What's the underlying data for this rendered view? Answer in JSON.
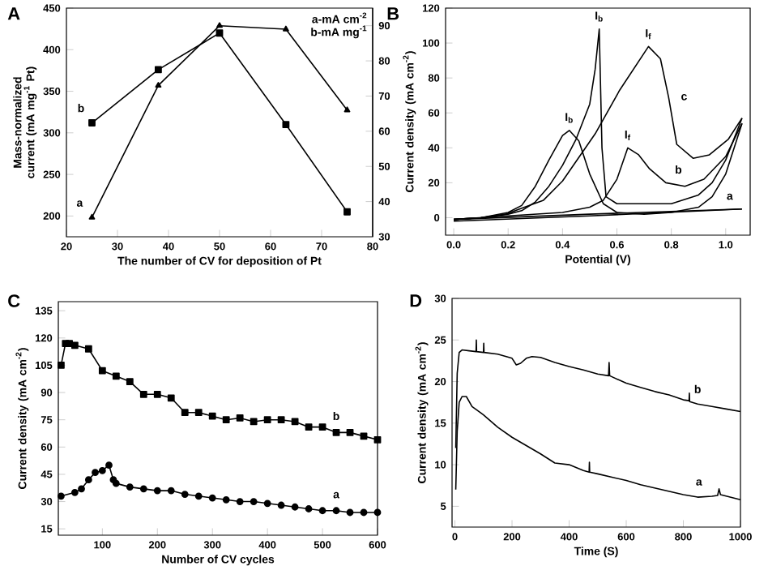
{
  "chart_data": [
    {
      "type": "line",
      "title": "A",
      "xlabel": "The number of CV for deposition of Pt",
      "ylabel": "Mass-normalized current (mA mg$^{-1}$ Pt)",
      "xlim": [
        20,
        80
      ],
      "xticks": [
        20,
        30,
        40,
        50,
        60,
        70,
        80
      ],
      "ylim": [
        175,
        450
      ],
      "yticks": [
        200,
        250,
        300,
        350,
        400,
        450
      ],
      "y2lim": [
        30,
        95
      ],
      "y2ticks": [
        30,
        40,
        50,
        60,
        70,
        80,
        90
      ],
      "annotations": [
        "a-mA cm$^{-2}$",
        "b-mA mg$^{-1}$"
      ],
      "series": [
        {
          "name": "b",
          "color": "#000000",
          "marker": "square",
          "x": [
            25,
            38,
            50,
            63,
            75
          ],
          "values": [
            312,
            376,
            420,
            310,
            205
          ]
        },
        {
          "name": "a",
          "color": "#000000",
          "marker": "triangle",
          "axis": "y2",
          "x": [
            25,
            38,
            50,
            63,
            75
          ],
          "values": [
            35.5,
            73,
            90,
            89,
            66
          ]
        }
      ]
    },
    {
      "type": "line",
      "title": "B",
      "xlabel": "Potential (V)",
      "ylabel": "Current density (mA cm$^{-2}$)",
      "xlim": [
        -0.03,
        1.09
      ],
      "xticks": [
        {
          "value": 0,
          "label": "0.0"
        },
        0.2,
        0.4,
        0.6,
        0.8,
        {
          "value": 1,
          "label": "1.0"
        }
      ],
      "ylim": [
        -10,
        120
      ],
      "yticks": [
        0,
        20,
        40,
        60,
        80,
        100,
        120
      ],
      "annotations": [
        {
          "text": "I$_{b}$",
          "x": 0.425,
          "y": 50
        },
        {
          "text": "I$_{b}$",
          "x": 0.535,
          "y": 108
        },
        {
          "text": "I$_{f}$",
          "x": 0.716,
          "y": 98
        },
        {
          "text": "I$_{f}$",
          "x": 0.64,
          "y": 40
        }
      ],
      "series": [
        {
          "name": "a",
          "color": "#000000",
          "x": [
            0,
            0.5,
            1.06
          ],
          "values": [
            -1,
            2,
            5
          ]
        },
        {
          "color": "#000000",
          "x": [
            0,
            0.5,
            1.06
          ],
          "values": [
            -2,
            1,
            5
          ]
        },
        {
          "name": "b",
          "color": "#000000",
          "x": [
            0,
            0.2,
            0.4,
            0.5,
            0.55,
            0.6,
            0.64,
            0.68,
            0.72,
            0.78,
            0.85,
            0.92,
            1.0,
            1.06
          ],
          "values": [
            -1,
            1,
            3,
            6,
            10,
            22,
            40,
            36,
            28,
            20,
            18,
            22,
            35,
            54
          ]
        },
        {
          "color": "#000000",
          "x": [
            0,
            0.1,
            0.2,
            0.25,
            0.3,
            0.35,
            0.4,
            0.425,
            0.46,
            0.5,
            0.55,
            0.6,
            0.7,
            0.8,
            0.9,
            0.95,
            1.0,
            1.06
          ],
          "values": [
            -1,
            0,
            3,
            7,
            18,
            33,
            47,
            50,
            44,
            25,
            8,
            3,
            2,
            3,
            6,
            12,
            25,
            54
          ]
        },
        {
          "name": "c",
          "color": "#000000",
          "x": [
            0,
            0.1,
            0.19,
            0.33,
            0.4,
            0.52,
            0.61,
            0.716,
            0.76,
            0.79,
            0.82,
            0.88,
            0.94,
            1.01,
            1.06
          ],
          "values": [
            -1,
            0,
            2,
            10,
            21,
            48,
            73,
            98,
            91,
            69,
            42,
            34,
            36,
            45,
            57
          ]
        },
        {
          "color": "#000000",
          "x": [
            0,
            0.1,
            0.2,
            0.25,
            0.3,
            0.35,
            0.4,
            0.45,
            0.5,
            0.52,
            0.535,
            0.545,
            0.56,
            0.6,
            0.7,
            0.8,
            0.9,
            0.95,
            1.0,
            1.06
          ],
          "values": [
            -1,
            0,
            2,
            4,
            9,
            18,
            30,
            45,
            65,
            85,
            108,
            40,
            12,
            8,
            8,
            8,
            13,
            20,
            33,
            57
          ]
        }
      ]
    },
    {
      "type": "line",
      "title": "C",
      "xlabel": "Number of CV cycles",
      "ylabel": "Current density (mA cm$^{-2}$)",
      "xlim": [
        20,
        600
      ],
      "xticks": [
        100,
        200,
        300,
        400,
        500,
        600
      ],
      "ylim": [
        11.5,
        140
      ],
      "yticks": [
        15,
        30,
        45,
        60,
        75,
        90,
        105,
        120,
        135
      ],
      "series": [
        {
          "name": "a",
          "color": "#000000",
          "marker": "circle",
          "x": [
            25,
            50,
            62,
            75,
            87,
            100,
            112,
            120,
            125,
            150,
            175,
            200,
            225,
            250,
            275,
            300,
            325,
            350,
            375,
            400,
            425,
            450,
            475,
            500,
            525,
            550,
            575,
            600
          ],
          "values": [
            33,
            35,
            37,
            42,
            46,
            47,
            50,
            42,
            40,
            38,
            37,
            36,
            36,
            34,
            33,
            32,
            31,
            30,
            30,
            29,
            28,
            27,
            26,
            25,
            25,
            24,
            24,
            24
          ]
        },
        {
          "name": "b",
          "color": "#000000",
          "marker": "square",
          "x": [
            25,
            33,
            40,
            50,
            75,
            100,
            125,
            150,
            175,
            200,
            225,
            250,
            275,
            300,
            325,
            350,
            375,
            400,
            425,
            450,
            475,
            500,
            525,
            550,
            575,
            600
          ],
          "values": [
            105,
            117,
            117,
            116,
            114,
            102,
            99,
            96,
            89,
            89,
            87,
            79,
            79,
            77,
            75,
            76,
            74,
            75,
            75,
            74,
            71,
            71,
            68,
            68,
            66,
            64
          ]
        }
      ]
    },
    {
      "type": "line",
      "title": "D",
      "xlabel": "Time (S)",
      "ylabel": "Current density (mA cm$^{-2}$)",
      "xlim": [
        -10,
        1000
      ],
      "xticks": [
        0,
        200,
        400,
        600,
        800,
        1000
      ],
      "ylim": [
        2.5,
        30
      ],
      "yticks": [
        5,
        10,
        15,
        20,
        25,
        30
      ],
      "series": [
        {
          "name": "a",
          "color": "#000000",
          "x": [
            3,
            8,
            15,
            25,
            40,
            60,
            100,
            150,
            200,
            250,
            300,
            350,
            400,
            450,
            470,
            471,
            472,
            500,
            550,
            600,
            650,
            700,
            750,
            800,
            850,
            900,
            920,
            925,
            930,
            1000
          ],
          "values": [
            7,
            14,
            17.5,
            18.2,
            18.2,
            17,
            16,
            14.5,
            13.3,
            12.3,
            11.3,
            10.2,
            10,
            9.3,
            9.1,
            10.3,
            9.1,
            8.9,
            8.5,
            8.1,
            7.6,
            7.2,
            6.8,
            6.4,
            6.1,
            6.2,
            6.3,
            7.1,
            6.4,
            5.8
          ]
        },
        {
          "name": "b",
          "color": "#000000",
          "x": [
            3,
            8,
            15,
            25,
            50,
            74,
            75,
            76,
            100,
            101,
            102,
            150,
            200,
            215,
            230,
            250,
            270,
            300,
            350,
            400,
            450,
            500,
            538,
            540,
            542,
            600,
            650,
            700,
            750,
            800,
            820,
            821,
            822,
            850,
            900,
            950,
            1000
          ],
          "values": [
            12,
            21,
            23.5,
            23.8,
            23.7,
            23.6,
            25,
            23.6,
            23.5,
            24.6,
            23.5,
            23.3,
            22.8,
            22,
            22.2,
            22.8,
            23,
            22.9,
            22.3,
            21.8,
            21.4,
            20.9,
            20.7,
            22.3,
            20.7,
            19.8,
            19.3,
            18.8,
            18.4,
            17.8,
            17.7,
            18.6,
            17.6,
            17.3,
            17,
            16.7,
            16.4
          ]
        }
      ]
    }
  ]
}
